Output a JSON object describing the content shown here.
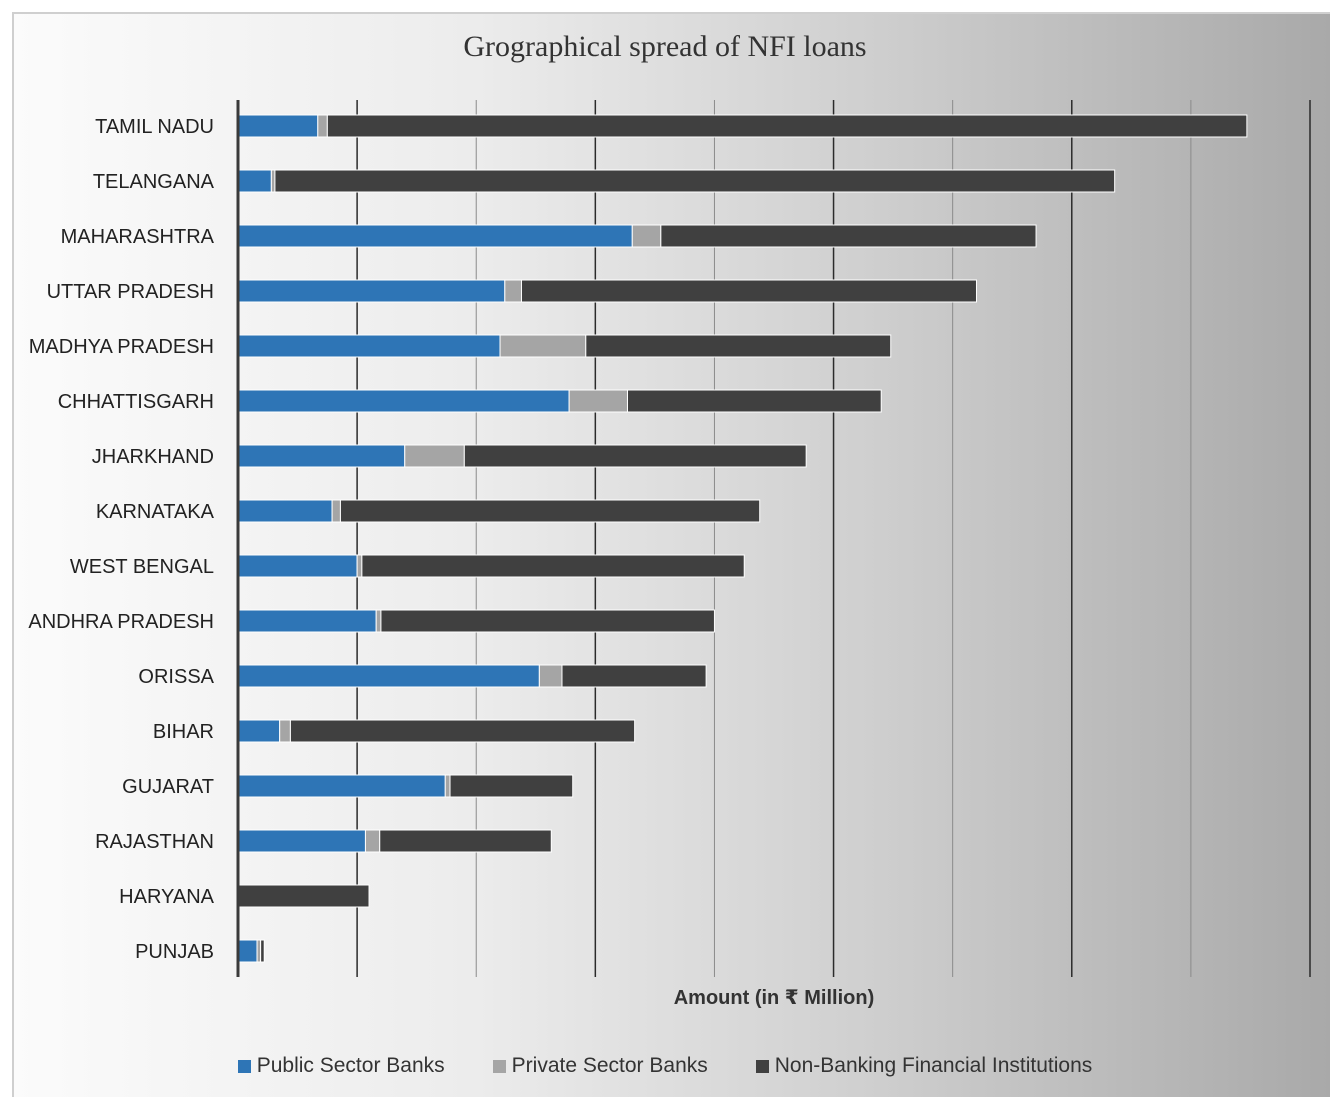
{
  "chart_data": {
    "type": "bar",
    "orientation": "horizontal",
    "stacked": true,
    "title": "Grographical spread of NFI loans",
    "xlabel": "Amount (in ₹  Million)",
    "ylabel": "",
    "xlim": [
      0,
      4500
    ],
    "grid": true,
    "legend_position": "bottom",
    "categories": [
      "TAMIL NADU",
      "TELANGANA",
      "MAHARASHTRA",
      "UTTAR PRADESH",
      "MADHYA PRADESH",
      "CHHATTISGARH",
      "JHARKHAND",
      "KARNATAKA",
      "WEST BENGAL",
      "ANDHRA PRADESH",
      "ORISSA",
      "BIHAR",
      "GUJARAT",
      "RAJASTHAN",
      "HARYANA",
      "PUNJAB"
    ],
    "series": [
      {
        "name": "Public Sector Banks",
        "color": "#2e75b6",
        "values": [
          335,
          140,
          1655,
          1120,
          1100,
          1390,
          700,
          395,
          500,
          580,
          1265,
          175,
          870,
          535,
          0,
          80
        ]
      },
      {
        "name": "Private Sector Banks",
        "color": "#a5a5a5",
        "values": [
          40,
          15,
          120,
          70,
          360,
          245,
          250,
          35,
          20,
          20,
          95,
          45,
          20,
          60,
          0,
          15
        ]
      },
      {
        "name": "Non-Banking Financial Institutions",
        "color": "#404040",
        "values": [
          3860,
          3525,
          1575,
          1910,
          1280,
          1065,
          1435,
          1760,
          1605,
          1400,
          605,
          1445,
          515,
          720,
          550,
          15
        ]
      }
    ]
  }
}
